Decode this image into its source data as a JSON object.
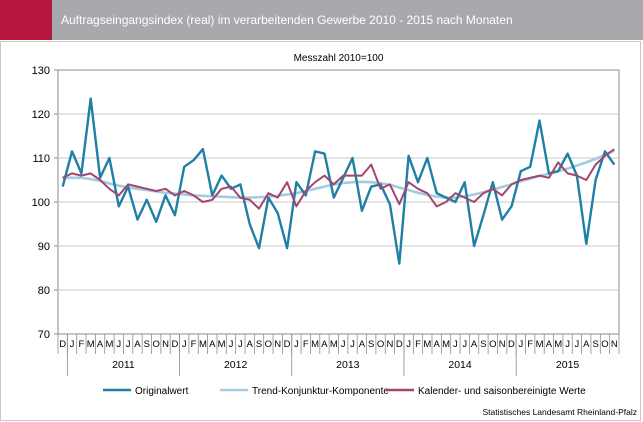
{
  "header": {
    "title": "Auftragseingangsindex (real) im verarbeitenden Gewerbe 2010 - 2015 nach Monaten",
    "accent_color": "#b5173f",
    "bar_color": "#a7a9ac"
  },
  "source": "Statistisches Landesamt Rheinland-Pfalz",
  "chart_data": {
    "type": "line",
    "subtitle": "Messzahl 2010=100",
    "ylim": [
      70,
      130
    ],
    "yticks": [
      70,
      80,
      90,
      100,
      110,
      120,
      130
    ],
    "grid": true,
    "legend_position": "bottom",
    "month_labels": [
      "D",
      "J",
      "F",
      "M",
      "A",
      "M",
      "J",
      "J",
      "A",
      "S",
      "O",
      "N",
      "D",
      "J",
      "F",
      "M",
      "A",
      "M",
      "J",
      "J",
      "A",
      "S",
      "O",
      "N",
      "D",
      "J",
      "F",
      "M",
      "A",
      "M",
      "J",
      "J",
      "A",
      "S",
      "O",
      "N",
      "D",
      "J",
      "F",
      "M",
      "A",
      "M",
      "J",
      "J",
      "A",
      "S",
      "O",
      "N",
      "D",
      "J",
      "F",
      "M",
      "A",
      "M",
      "J",
      "J",
      "A",
      "S",
      "O",
      "N"
    ],
    "year_labels": [
      {
        "label": "2011",
        "start": 1,
        "end": 12
      },
      {
        "label": "2012",
        "start": 13,
        "end": 24
      },
      {
        "label": "2013",
        "start": 25,
        "end": 36
      },
      {
        "label": "2014",
        "start": 37,
        "end": 48
      },
      {
        "label": "2015",
        "start": 49,
        "end": 59
      }
    ],
    "series": [
      {
        "name": "Originalwert",
        "color": "#1f7fa5",
        "values": [
          103.5,
          111.5,
          106.5,
          123.5,
          105.5,
          110.0,
          99.0,
          103.5,
          96.0,
          100.5,
          95.5,
          101.5,
          97.0,
          108.0,
          109.5,
          112.0,
          101.5,
          106.0,
          103.0,
          104.0,
          95.0,
          89.5,
          101.0,
          97.5,
          89.5,
          104.5,
          101.5,
          111.5,
          111.0,
          101.0,
          105.5,
          110.0,
          98.0,
          103.5,
          104.0,
          99.5,
          86.0,
          110.5,
          104.5,
          110.0,
          102.0,
          101.0,
          100.0,
          104.5,
          90.0,
          97.0,
          104.5,
          96.0,
          99.0,
          107.0,
          108.0,
          118.5,
          106.5,
          107.0,
          111.0,
          106.0,
          90.5,
          105.0,
          111.5,
          108.5
        ]
      },
      {
        "name": "Trend-Konjunktur-Komponente",
        "color": "#a5cbe0",
        "values": [
          105.5,
          105.5,
          105.5,
          105.2,
          104.8,
          104.2,
          103.7,
          103.3,
          103.0,
          102.7,
          102.4,
          102.1,
          101.9,
          101.7,
          101.5,
          101.4,
          101.3,
          101.2,
          101.1,
          101.0,
          101.0,
          101.1,
          101.2,
          101.4,
          101.7,
          102.0,
          102.5,
          103.0,
          103.5,
          104.0,
          104.3,
          104.5,
          104.6,
          104.5,
          104.3,
          103.9,
          103.3,
          102.7,
          102.1,
          101.6,
          101.2,
          101.0,
          101.0,
          101.3,
          101.7,
          102.2,
          102.8,
          103.4,
          104.0,
          104.7,
          105.3,
          105.9,
          106.4,
          107.0,
          107.6,
          108.3,
          109.0,
          109.8,
          110.7,
          111.7
        ]
      },
      {
        "name": "Kalender- und saisonbereinigte Werte",
        "color": "#a3456f",
        "values": [
          105.5,
          106.5,
          106.0,
          106.5,
          105.0,
          103.0,
          101.5,
          104.0,
          103.5,
          103.0,
          102.5,
          103.0,
          101.5,
          102.5,
          101.5,
          100.0,
          100.5,
          103.0,
          103.5,
          101.0,
          100.5,
          98.5,
          102.0,
          101.0,
          104.5,
          99.0,
          102.5,
          104.5,
          106.0,
          104.0,
          106.0,
          106.0,
          106.0,
          108.5,
          103.0,
          104.0,
          99.5,
          104.5,
          103.0,
          102.0,
          99.0,
          100.0,
          102.0,
          101.0,
          100.0,
          102.0,
          103.0,
          101.5,
          104.0,
          105.0,
          105.5,
          106.0,
          105.5,
          109.0,
          106.5,
          106.0,
          105.0,
          108.5,
          110.5,
          112.0
        ]
      }
    ]
  }
}
